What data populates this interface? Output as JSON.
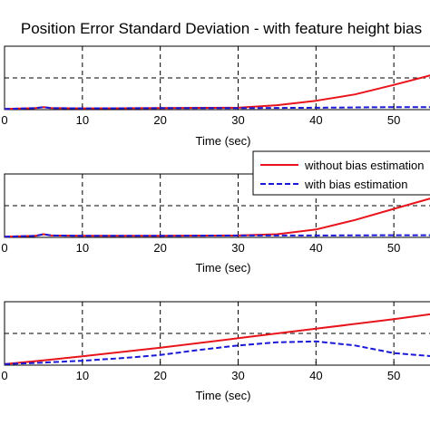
{
  "figure": {
    "title": "Position Error Standard Deviation - with feature height bias"
  },
  "chart_data": [
    {
      "type": "line",
      "xlabel": "Time (sec)",
      "ylabel": "",
      "xlim": [
        0,
        60
      ],
      "ylim": [
        0,
        2
      ],
      "grid": true,
      "x_ticks": [
        "0",
        "10",
        "20",
        "30",
        "40",
        "50"
      ],
      "series": [
        {
          "name": "without bias estimation",
          "color": "#e8141c",
          "dash": "solid",
          "x": [
            0,
            4,
            5,
            6,
            10,
            20,
            30,
            35,
            40,
            45,
            50,
            55,
            60
          ],
          "y": [
            0.02,
            0.05,
            0.08,
            0.05,
            0.04,
            0.05,
            0.06,
            0.14,
            0.28,
            0.48,
            0.78,
            1.1,
            1.45
          ]
        },
        {
          "name": "with bias estimation",
          "color": "#1a1ad6",
          "dash": "dashed",
          "x": [
            0,
            4,
            5,
            6,
            10,
            20,
            30,
            40,
            50,
            60
          ],
          "y": [
            0.02,
            0.05,
            0.08,
            0.05,
            0.04,
            0.05,
            0.05,
            0.06,
            0.08,
            0.08
          ]
        }
      ]
    },
    {
      "type": "line",
      "xlabel": "Time (sec)",
      "ylabel": "",
      "xlim": [
        0,
        60
      ],
      "ylim": [
        0,
        2
      ],
      "grid": true,
      "x_ticks": [
        "0",
        "10",
        "20",
        "30",
        "40",
        "50"
      ],
      "legend": {
        "position": "top-right",
        "entries": [
          "without bias estimation",
          "with bias estimation"
        ]
      },
      "series": [
        {
          "name": "without bias estimation",
          "color": "#e8141c",
          "dash": "solid",
          "x": [
            0,
            4,
            5,
            6,
            10,
            20,
            30,
            35,
            40,
            45,
            50,
            55,
            60
          ],
          "y": [
            0.02,
            0.05,
            0.1,
            0.06,
            0.05,
            0.05,
            0.06,
            0.1,
            0.25,
            0.55,
            0.9,
            1.25,
            1.55
          ]
        },
        {
          "name": "with bias estimation",
          "color": "#1a1ad6",
          "dash": "dashed",
          "x": [
            0,
            4,
            5,
            6,
            10,
            20,
            30,
            40,
            50,
            60
          ],
          "y": [
            0.02,
            0.05,
            0.1,
            0.06,
            0.05,
            0.05,
            0.06,
            0.06,
            0.07,
            0.07
          ]
        }
      ]
    },
    {
      "type": "line",
      "xlabel": "Time (sec)",
      "ylabel": "",
      "xlim": [
        0,
        60
      ],
      "ylim": [
        0,
        2
      ],
      "grid": true,
      "x_ticks": [
        "0",
        "10",
        "20",
        "30",
        "40",
        "50"
      ],
      "series": [
        {
          "name": "without bias estimation",
          "color": "#e8141c",
          "dash": "solid",
          "x": [
            0,
            5,
            10,
            20,
            30,
            40,
            50,
            60
          ],
          "y": [
            0.03,
            0.15,
            0.28,
            0.55,
            0.85,
            1.15,
            1.45,
            1.78
          ]
        },
        {
          "name": "with bias estimation",
          "color": "#1a1ad6",
          "dash": "dashed",
          "x": [
            0,
            5,
            10,
            15,
            20,
            25,
            30,
            35,
            40,
            45,
            50,
            55,
            60
          ],
          "y": [
            0.03,
            0.08,
            0.14,
            0.22,
            0.32,
            0.48,
            0.62,
            0.72,
            0.75,
            0.62,
            0.38,
            0.28,
            0.22
          ]
        }
      ]
    }
  ]
}
